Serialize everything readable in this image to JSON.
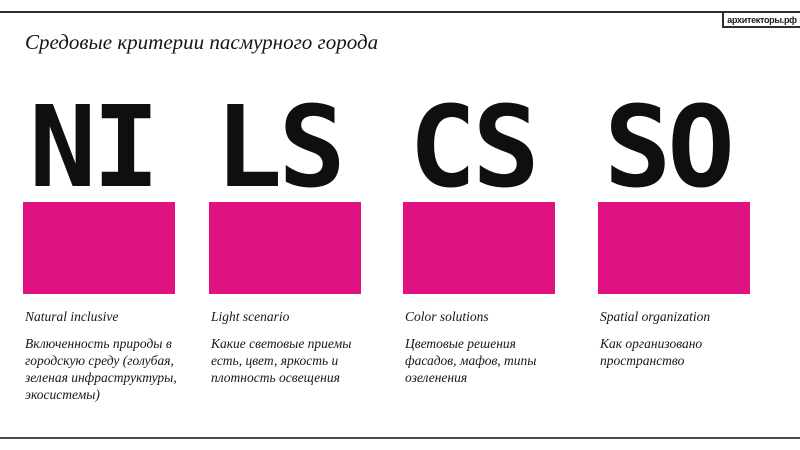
{
  "logo": {
    "text": "архитекторы.рф"
  },
  "title": "Средовые критерии пасмурного города",
  "colors": {
    "accent": "#de1280",
    "rule": "#2f2f2f"
  },
  "columns": [
    {
      "abbr": "NI",
      "label": "Natural inclusive",
      "description": "Включенность природы в\nгородскую среду (голубая,\nзеленая инфраструктуры,\nэкосистемы)"
    },
    {
      "abbr": "LS",
      "label": "Light scenario",
      "description": "Какие световые приемы\nесть, цвет, яркость и\nплотность освещения"
    },
    {
      "abbr": "CS",
      "label": "Color solutions",
      "description": "Цветовые решения\nфасадов, мафов, типы\nозеленения"
    },
    {
      "abbr": "SO",
      "label": "Spatial organization",
      "description": "Как организовано\nпространство"
    }
  ]
}
